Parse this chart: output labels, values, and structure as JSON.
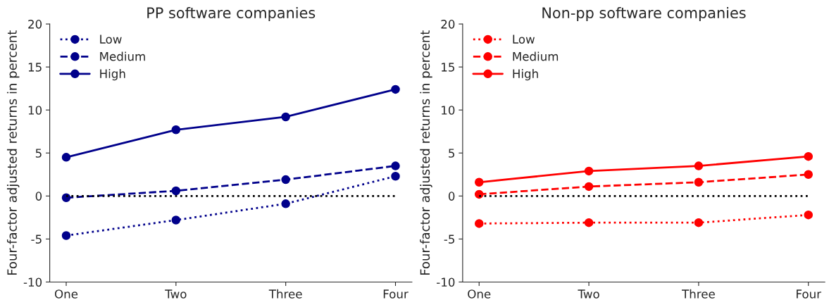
{
  "chart_data": [
    {
      "type": "line",
      "title": "PP software companies",
      "ylabel": "Four-factor adjusted returns in percent",
      "categories": [
        "One",
        "Two",
        "Three",
        "Four"
      ],
      "ylim": [
        -10,
        20
      ],
      "yticks": [
        -10,
        -5,
        0,
        5,
        10,
        15,
        20
      ],
      "grid": false,
      "legend": "top left",
      "marker": "circle",
      "series": [
        {
          "name": "Low",
          "color": "#00008b",
          "line_style": "dotted",
          "values": [
            -4.6,
            -2.8,
            -0.9,
            2.3
          ]
        },
        {
          "name": "Medium",
          "color": "#00008b",
          "line_style": "dashed",
          "values": [
            -0.2,
            0.6,
            1.9,
            3.5
          ]
        },
        {
          "name": "High",
          "color": "#00008b",
          "line_style": "solid",
          "values": [
            4.5,
            7.7,
            9.2,
            12.4
          ]
        }
      ],
      "ref_lines": [
        {
          "axis": "y",
          "value": 0,
          "color": "#000000",
          "line_style": "dotted"
        }
      ]
    },
    {
      "type": "line",
      "title": "Non-pp software companies",
      "ylabel": "Four-factor adjusted returns in percent",
      "categories": [
        "One",
        "Two",
        "Three",
        "Four"
      ],
      "ylim": [
        -10,
        20
      ],
      "yticks": [
        -10,
        -5,
        0,
        5,
        10,
        15,
        20
      ],
      "grid": false,
      "legend": "top left",
      "marker": "circle",
      "series": [
        {
          "name": "Low",
          "color": "#ff0000",
          "line_style": "dotted",
          "values": [
            -3.2,
            -3.1,
            -3.1,
            -2.2
          ]
        },
        {
          "name": "Medium",
          "color": "#ff0000",
          "line_style": "dashed",
          "values": [
            0.2,
            1.1,
            1.6,
            2.5
          ]
        },
        {
          "name": "High",
          "color": "#ff0000",
          "line_style": "solid",
          "values": [
            1.6,
            2.9,
            3.5,
            4.6
          ]
        }
      ],
      "ref_lines": [
        {
          "axis": "y",
          "value": 0,
          "color": "#000000",
          "line_style": "dotted"
        }
      ]
    }
  ]
}
